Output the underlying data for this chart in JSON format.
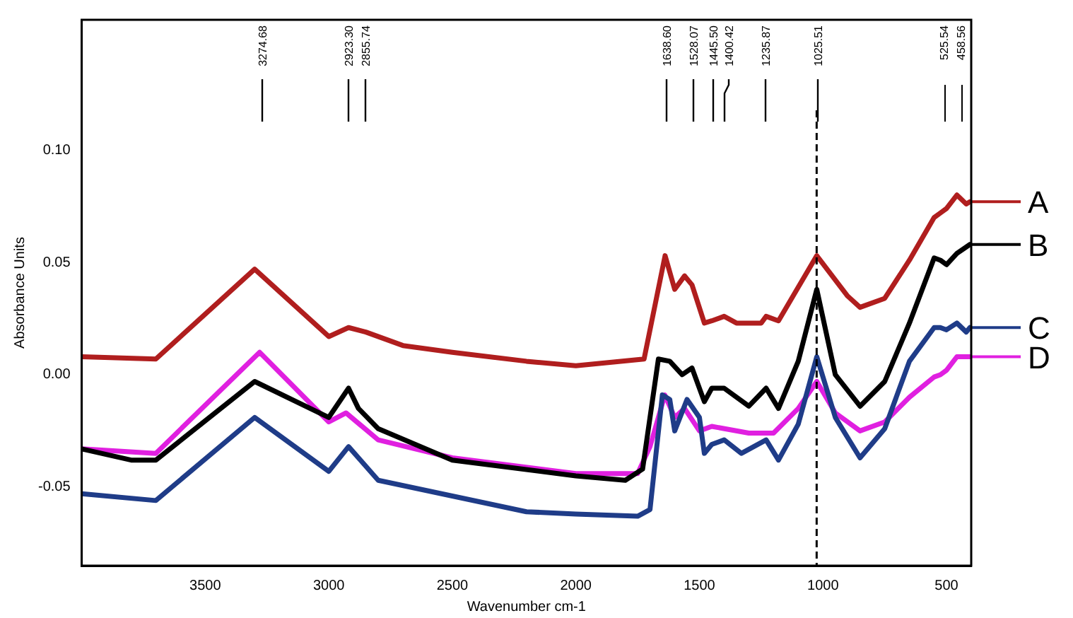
{
  "chart_data": {
    "type": "line",
    "xlabel": "Wavenumber cm-1",
    "ylabel": "Absorbance Units",
    "xlim": [
      4000,
      400
    ],
    "xticks": [
      3500,
      3000,
      2500,
      2000,
      1500,
      1000,
      500
    ],
    "ylim": [
      -0.085,
      0.158
    ],
    "yticks": [
      {
        "value": -0.05,
        "label": "-0.05"
      },
      {
        "value": 0,
        "label": "0.00"
      },
      {
        "value": 0.05,
        "label": "0.05"
      },
      {
        "value": 0.1,
        "label": "0.10"
      }
    ],
    "grid": false,
    "legend": "right",
    "marker": "none",
    "line_style": "solid",
    "series": [
      {
        "name": "A",
        "color": "#b01e1e",
        "x": [
          4000,
          3700,
          3300,
          3000,
          2920,
          2850,
          2700,
          2500,
          2200,
          2000,
          1724,
          1639,
          1600,
          1560,
          1530,
          1480,
          1450,
          1400,
          1350,
          1250,
          1230,
          1180,
          1025,
          900,
          850,
          750,
          650,
          550,
          525,
          500,
          458,
          420,
          405
        ],
        "values": [
          0.008,
          0.007,
          0.047,
          0.017,
          0.021,
          0.019,
          0.013,
          0.01,
          0.006,
          0.004,
          0.007,
          0.053,
          0.038,
          0.044,
          0.04,
          0.023,
          0.024,
          0.026,
          0.023,
          0.023,
          0.026,
          0.024,
          0.053,
          0.035,
          0.03,
          0.034,
          0.051,
          0.07,
          0.072,
          0.074,
          0.08,
          0.076,
          0.077
        ]
      },
      {
        "name": "B",
        "color": "#000000",
        "x": [
          4000,
          3800,
          3700,
          3300,
          3000,
          2920,
          2880,
          2800,
          2500,
          2000,
          1800,
          1730,
          1666,
          1620,
          1570,
          1530,
          1480,
          1450,
          1400,
          1300,
          1230,
          1180,
          1100,
          1025,
          950,
          850,
          750,
          650,
          550,
          525,
          500,
          458,
          405
        ],
        "values": [
          -0.033,
          -0.038,
          -0.038,
          -0.003,
          -0.019,
          -0.006,
          -0.015,
          -0.024,
          -0.038,
          -0.045,
          -0.047,
          -0.042,
          0.007,
          0.006,
          0.0,
          0.003,
          -0.012,
          -0.006,
          -0.006,
          -0.014,
          -0.006,
          -0.015,
          0.006,
          0.038,
          0.0,
          -0.014,
          -0.003,
          0.023,
          0.052,
          0.051,
          0.049,
          0.054,
          0.058
        ]
      },
      {
        "name": "C",
        "color": "#1f3c88",
        "x": [
          4000,
          3700,
          3300,
          3000,
          2920,
          2800,
          2500,
          2200,
          2000,
          1750,
          1700,
          1650,
          1620,
          1600,
          1550,
          1500,
          1480,
          1450,
          1400,
          1330,
          1230,
          1180,
          1100,
          1025,
          950,
          850,
          750,
          650,
          550,
          525,
          500,
          458,
          420,
          405
        ],
        "values": [
          -0.053,
          -0.056,
          -0.019,
          -0.043,
          -0.032,
          -0.047,
          -0.054,
          -0.061,
          -0.062,
          -0.063,
          -0.06,
          -0.009,
          -0.011,
          -0.025,
          -0.011,
          -0.019,
          -0.035,
          -0.031,
          -0.029,
          -0.035,
          -0.029,
          -0.038,
          -0.022,
          0.008,
          -0.019,
          -0.037,
          -0.024,
          0.006,
          0.021,
          0.021,
          0.02,
          0.023,
          0.019,
          0.021
        ]
      },
      {
        "name": "D",
        "color": "#e020e0",
        "x": [
          4000,
          3700,
          3280,
          3000,
          2930,
          2800,
          2500,
          2000,
          1750,
          1700,
          1640,
          1600,
          1560,
          1500,
          1450,
          1300,
          1200,
          1100,
          1025,
          950,
          850,
          750,
          650,
          550,
          525,
          500,
          458,
          405
        ],
        "values": [
          -0.033,
          -0.035,
          0.01,
          -0.021,
          -0.017,
          -0.029,
          -0.037,
          -0.044,
          -0.044,
          -0.032,
          -0.009,
          -0.019,
          -0.015,
          -0.025,
          -0.023,
          -0.026,
          -0.026,
          -0.015,
          -0.003,
          -0.017,
          -0.025,
          -0.021,
          -0.01,
          -0.001,
          0.0,
          0.002,
          0.008,
          0.008
        ]
      }
    ],
    "ref_lines": [
      {
        "axis": "x",
        "value": 1025.51,
        "color": "#000000",
        "line_style": "dashed"
      }
    ],
    "annotations": [
      {
        "text": "3274.68",
        "x": 3274.68
      },
      {
        "text": "2923.30",
        "x": 2923.3
      },
      {
        "text": "2855.74",
        "x": 2855.74
      },
      {
        "text": "1638.60",
        "x": 1638.6
      },
      {
        "text": "1528.07",
        "x": 1528.07
      },
      {
        "text": "1445.50",
        "x": 1445.5
      },
      {
        "text": "1400.42",
        "x": 1400.42
      },
      {
        "text": "1235.87",
        "x": 1235.87
      },
      {
        "text": "1025.51",
        "x": 1025.51
      },
      "525.54",
      "458.56"
    ]
  }
}
